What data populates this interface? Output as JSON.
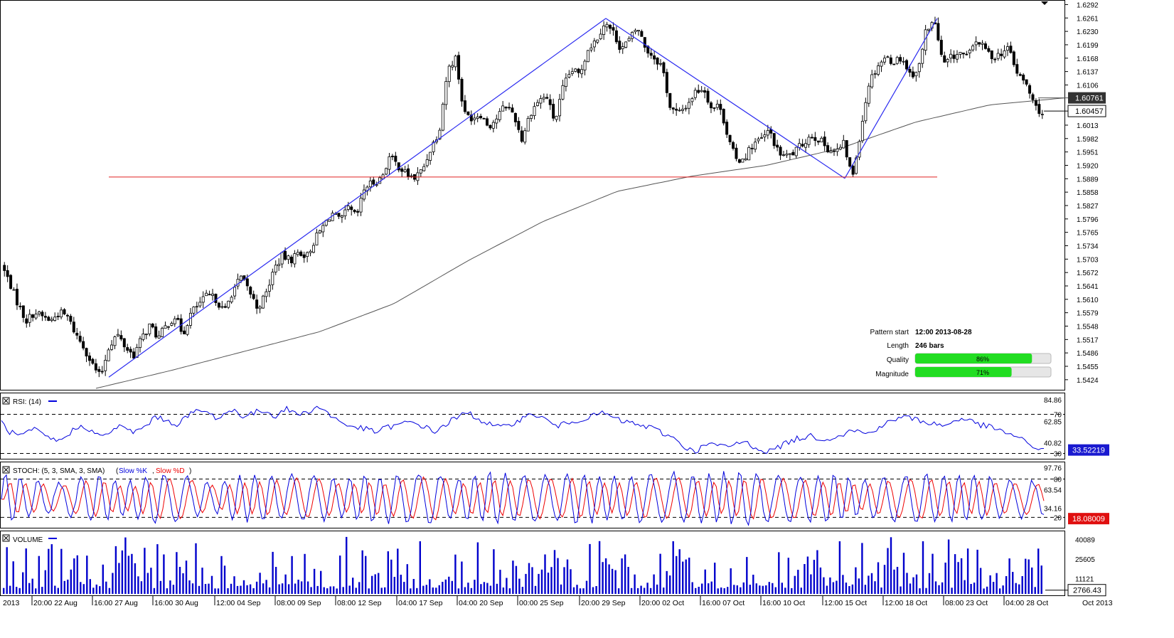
{
  "chart_data": {
    "type": "candlestick",
    "price_axis": {
      "ticks": [
        "1.6292",
        "1.6261",
        "1.6230",
        "1.6199",
        "1.6168",
        "1.6137",
        "1.6106",
        "1.6013",
        "1.5982",
        "1.5951",
        "1.5920",
        "1.5889",
        "1.5858",
        "1.5827",
        "1.5796",
        "1.5765",
        "1.5734",
        "1.5703",
        "1.5672",
        "1.5641",
        "1.5610",
        "1.5579",
        "1.5548",
        "1.5517",
        "1.5486",
        "1.5455",
        "1.5424"
      ],
      "range": [
        1.5404,
        1.6296
      ]
    },
    "price_labels": {
      "ma_value": "1.60761",
      "last_value": "1.60457"
    },
    "time_axis": [
      "2013",
      "20:00 22 Aug",
      "16:00 27 Aug",
      "16:00 30 Aug",
      "12:00 04 Sep",
      "08:00 09 Sep",
      "08:00 12 Sep",
      "04:00 17 Sep",
      "04:00 20 Sep",
      "00:00 25 Sep",
      "20:00 29 Sep",
      "20:00 02 Oct",
      "16:00 07 Oct",
      "16:00 10 Oct",
      "12:00 15 Oct",
      "12:00 18 Oct",
      "08:00 23 Oct",
      "04:00 28 Oct",
      "Oct 2013"
    ],
    "price_path": [
      1.569,
      1.565,
      1.56,
      1.556,
      1.558,
      1.557,
      1.556,
      1.558,
      1.557,
      1.553,
      1.55,
      1.546,
      1.543,
      1.55,
      1.553,
      1.55,
      1.548,
      1.552,
      1.555,
      1.552,
      1.555,
      1.557,
      1.553,
      1.558,
      1.56,
      1.562,
      1.561,
      1.558,
      1.563,
      1.566,
      1.563,
      1.559,
      1.562,
      1.568,
      1.571,
      1.57,
      1.572,
      1.571,
      1.575,
      1.578,
      1.581,
      1.579,
      1.582,
      1.58,
      1.587,
      1.588,
      1.589,
      1.594,
      1.592,
      1.59,
      1.589,
      1.591,
      1.596,
      1.6,
      1.614,
      1.617,
      1.604,
      1.603,
      1.604,
      1.601,
      1.603,
      1.606,
      1.604,
      1.598,
      1.604,
      1.607,
      1.608,
      1.602,
      1.61,
      1.614,
      1.613,
      1.619,
      1.621,
      1.625,
      1.623,
      1.619,
      1.621,
      1.624,
      1.619,
      1.617,
      1.615,
      1.605,
      1.604,
      1.606,
      1.609,
      1.61,
      1.605,
      1.606,
      1.598,
      1.593,
      1.594,
      1.597,
      1.598,
      1.6,
      1.595,
      1.594,
      1.595,
      1.597,
      1.599,
      1.598,
      1.596,
      1.595,
      1.597,
      1.589,
      1.6,
      1.611,
      1.615,
      1.617,
      1.616,
      1.617,
      1.613,
      1.614,
      1.624,
      1.625,
      1.615,
      1.617,
      1.618,
      1.617,
      1.621,
      1.619,
      1.617,
      1.618,
      1.619,
      1.613,
      1.611,
      1.606,
      1.604
    ],
    "ma_path": [
      1.5404,
      1.5445,
      1.549,
      1.5535,
      1.56,
      1.57,
      1.579,
      1.586,
      1.5895,
      1.592,
      1.596,
      1.602,
      1.606,
      1.6076
    ],
    "pattern_lines": [
      [
        1.543,
        1.626
      ],
      [
        1.626,
        1.589
      ],
      [
        1.589,
        1.626
      ]
    ],
    "support_level": 1.5893,
    "pattern_info": {
      "rows": [
        {
          "label": "Pattern start",
          "value": "12:00 2013-08-28"
        },
        {
          "label": "Length",
          "value": "246 bars"
        }
      ],
      "quality": {
        "label": "Quality",
        "value": "86%",
        "fraction": 0.86
      },
      "magnitude": {
        "label": "Magnitude",
        "value": "71%",
        "fraction": 0.71
      }
    },
    "rsi": {
      "label": "RSI: (14)",
      "ticks": [
        "84.86",
        "70",
        "62.85",
        "40.82",
        "30"
      ],
      "current": "33.52219",
      "range": [
        26,
        90
      ],
      "path": [
        62,
        52,
        48,
        50,
        55,
        48,
        45,
        42,
        50,
        56,
        58,
        52,
        46,
        52,
        58,
        54,
        52,
        56,
        64,
        68,
        62,
        60,
        66,
        72,
        74,
        70,
        66,
        72,
        74,
        68,
        70,
        74,
        72,
        68,
        76,
        72,
        70,
        74,
        78,
        72,
        66,
        60,
        58,
        56,
        54,
        52,
        56,
        58,
        60,
        62,
        60,
        56,
        52,
        58,
        64,
        68,
        72,
        66,
        62,
        58,
        56,
        60,
        64,
        68,
        70,
        66,
        60,
        58,
        62,
        64,
        66,
        68,
        72,
        68,
        64,
        62,
        60,
        58,
        56,
        52,
        48,
        44,
        36,
        32,
        36,
        40,
        38,
        36,
        40,
        42,
        38,
        34,
        32,
        36,
        40,
        44,
        46,
        48,
        46,
        44,
        48,
        50,
        54,
        52,
        50,
        56,
        60,
        64,
        68,
        66,
        64,
        62,
        60,
        58,
        62,
        66,
        64,
        60,
        58,
        56,
        52,
        50,
        46,
        40,
        36,
        34
      ],
      "levels": [
        70,
        30
      ]
    },
    "stoch": {
      "label": "STOCH: (5, 3, SMA, 3, SMA)",
      "k_name": "Slow %K",
      "d_name": "Slow %D",
      "ticks": [
        "97.76",
        "80",
        "63.54",
        "34.16",
        "20"
      ],
      "current": "18.08009",
      "range": [
        6,
        104
      ],
      "period": 5.6,
      "k_amp": [
        40,
        30,
        25,
        35,
        30,
        40,
        35,
        25,
        40,
        35,
        38,
        30,
        35,
        38,
        40,
        30,
        42,
        38,
        35,
        40,
        35,
        38,
        40,
        36,
        42,
        38,
        35,
        40,
        30,
        35,
        38,
        40,
        35,
        30,
        25
      ],
      "levels": [
        80,
        20
      ]
    },
    "volume": {
      "label": "VOLUME",
      "ticks": [
        "40089",
        "25605",
        "11121"
      ],
      "current": "2766.43",
      "max": 45000,
      "bars": 325
    }
  }
}
